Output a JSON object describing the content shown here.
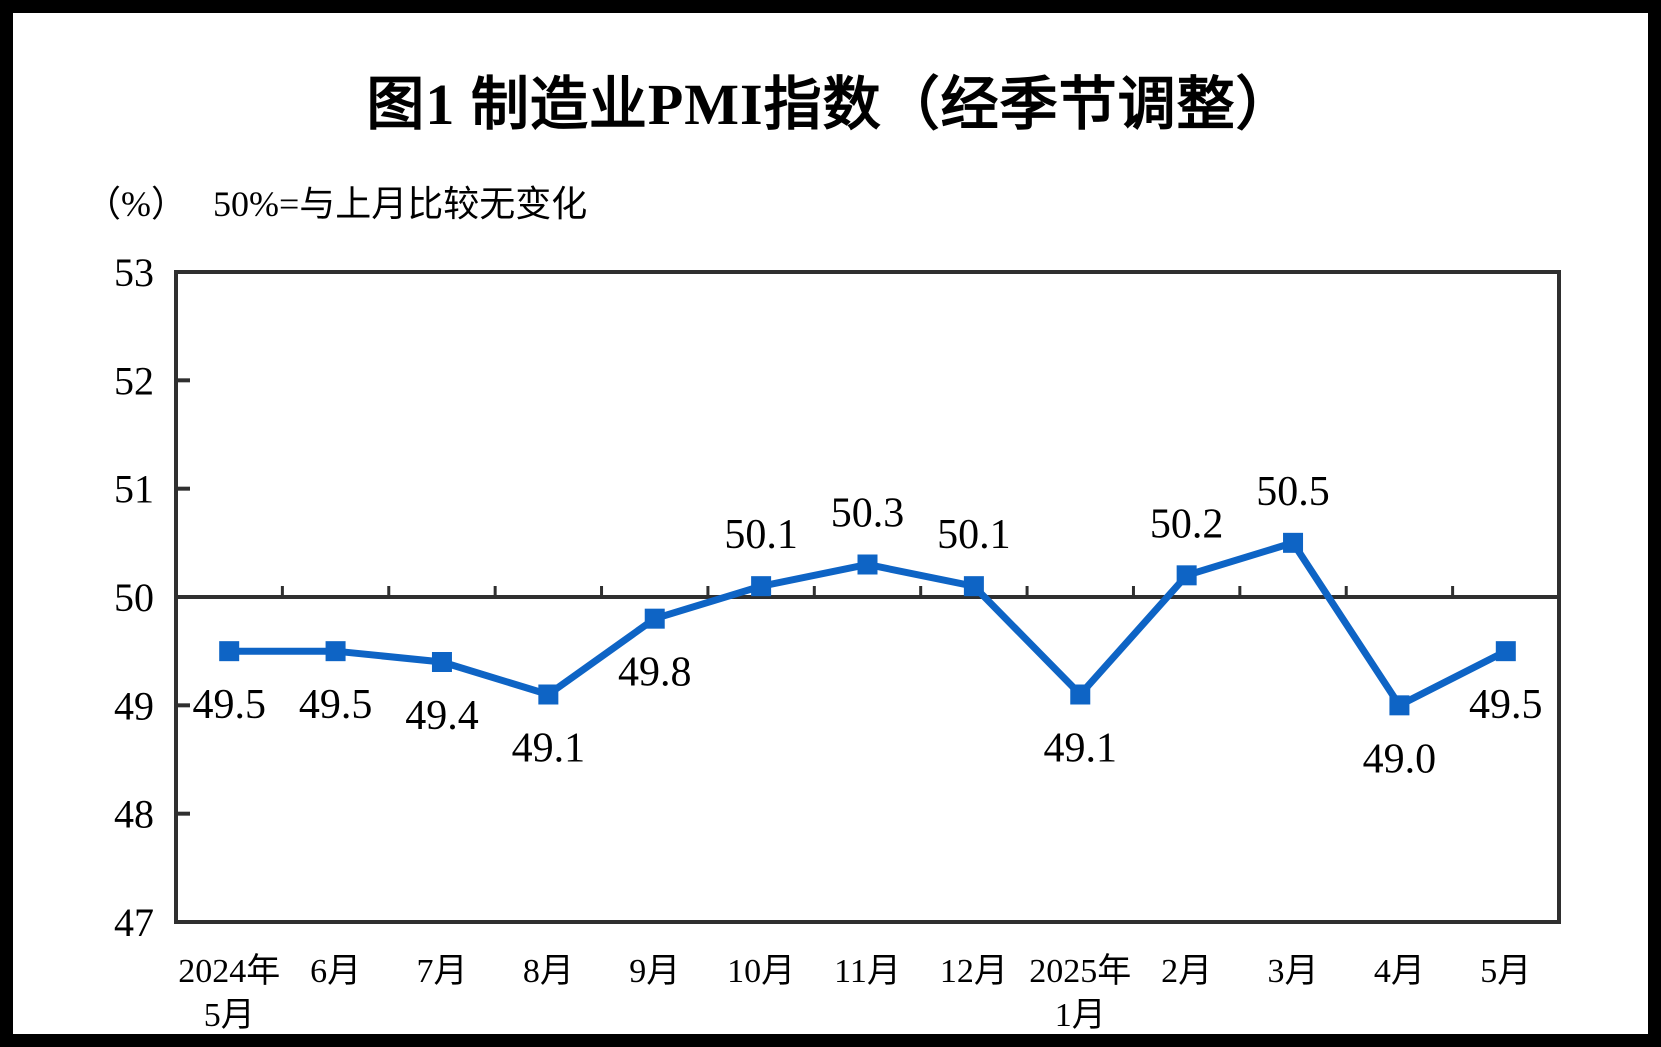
{
  "chart_data": {
    "type": "line",
    "title": "图1  制造业PMI指数（经季节调整）",
    "unit_label": "（%）",
    "note": "50%=与上月比较无变化",
    "categories": [
      [
        "2024年",
        "5月"
      ],
      [
        "6月"
      ],
      [
        "7月"
      ],
      [
        "8月"
      ],
      [
        "9月"
      ],
      [
        "10月"
      ],
      [
        "11月"
      ],
      [
        "12月"
      ],
      [
        "2025年",
        "1月"
      ],
      [
        "2月"
      ],
      [
        "3月"
      ],
      [
        "4月"
      ],
      [
        "5月"
      ]
    ],
    "series": [
      {
        "name": "制造业PMI",
        "values": [
          49.5,
          49.5,
          49.4,
          49.1,
          49.8,
          50.1,
          50.3,
          50.1,
          49.1,
          50.2,
          50.5,
          49.0,
          49.5
        ]
      }
    ],
    "data_label_decimals": 1,
    "label_positions": [
      "below",
      "below",
      "below",
      "below",
      "below",
      "above",
      "above",
      "above",
      "below",
      "above",
      "above",
      "below",
      "below"
    ],
    "ylim": [
      47,
      53
    ],
    "yticks": [
      47,
      48,
      49,
      50,
      51,
      52,
      53
    ],
    "reference_line": 50,
    "grid": false,
    "legend": "none",
    "marker": "square",
    "colors": {
      "line": "#0E64C5",
      "axis": "#2F2F2F",
      "text": "#000000",
      "background": "#FFFFFF",
      "frame": "#000000"
    }
  }
}
